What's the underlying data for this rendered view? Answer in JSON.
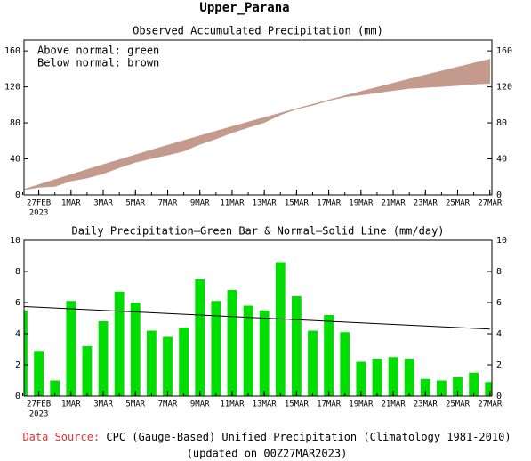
{
  "title": "Upper_Parana",
  "chart_data": [
    {
      "type": "band",
      "title": "Observed Accumulated Precipitation (mm)",
      "annotations": [
        "Above normal: green",
        "Below normal: brown"
      ],
      "above_color": "#00cc00",
      "below_color": "#c49a8c",
      "x": [
        "2023-02-26",
        "2023-02-27",
        "2023-02-28",
        "2023-03-01",
        "2023-03-02",
        "2023-03-03",
        "2023-03-04",
        "2023-03-05",
        "2023-03-06",
        "2023-03-07",
        "2023-03-08",
        "2023-03-09",
        "2023-03-10",
        "2023-03-11",
        "2023-03-12",
        "2023-03-13",
        "2023-03-14",
        "2023-03-15",
        "2023-03-16",
        "2023-03-17",
        "2023-03-18",
        "2023-03-19",
        "2023-03-20",
        "2023-03-21",
        "2023-03-22",
        "2023-03-23",
        "2023-03-24",
        "2023-03-25",
        "2023-03-26",
        "2023-03-27"
      ],
      "series": [
        {
          "name": "Observed",
          "values": [
            5.5,
            8.4,
            9.4,
            15.5,
            18.7,
            23.5,
            30.2,
            36.2,
            40.4,
            44.2,
            48.6,
            56.1,
            62.2,
            69.0,
            74.8,
            80.3,
            88.9,
            95.3,
            99.5,
            104.7,
            108.8,
            111.0,
            113.4,
            115.9,
            118.2,
            119.3,
            120.3,
            121.5,
            123.0,
            123.8
          ]
        },
        {
          "name": "Normal",
          "values": [
            5.8,
            11.5,
            17.1,
            22.7,
            28.3,
            33.8,
            39.2,
            44.6,
            50.0,
            55.3,
            60.5,
            65.7,
            70.9,
            76.0,
            81.0,
            86.0,
            91.0,
            95.9,
            100.7,
            105.5,
            110.3,
            115.0,
            119.6,
            124.2,
            128.8,
            133.3,
            137.7,
            142.1,
            146.5,
            150.8
          ]
        }
      ],
      "xlim": [
        "2023-02-26T02:00",
        "2023-03-27T03:00"
      ],
      "xticks": [
        {
          "value": "2023-02-27",
          "label": "27FEB"
        },
        {
          "value": "2023-03-01",
          "label": "1MAR"
        },
        {
          "value": "2023-03-03",
          "label": "3MAR"
        },
        {
          "value": "2023-03-05",
          "label": "5MAR"
        },
        {
          "value": "2023-03-07",
          "label": "7MAR"
        },
        {
          "value": "2023-03-09",
          "label": "9MAR"
        },
        {
          "value": "2023-03-11",
          "label": "11MAR"
        },
        {
          "value": "2023-03-13",
          "label": "13MAR"
        },
        {
          "value": "2023-03-15",
          "label": "15MAR"
        },
        {
          "value": "2023-03-17",
          "label": "17MAR"
        },
        {
          "value": "2023-03-19",
          "label": "19MAR"
        },
        {
          "value": "2023-03-21",
          "label": "21MAR"
        },
        {
          "value": "2023-03-23",
          "label": "23MAR"
        },
        {
          "value": "2023-03-25",
          "label": "25MAR"
        },
        {
          "value": "2023-03-27",
          "label": "27MAR"
        }
      ],
      "x_year": "2023",
      "ylim": [
        0,
        172
      ],
      "yticks": [
        0,
        40,
        80,
        120,
        160
      ]
    },
    {
      "type": "bar",
      "title": "Daily Precipitation—Green Bar & Normal—Solid Line (mm/day)",
      "x": [
        "2023-02-26",
        "2023-02-27",
        "2023-02-28",
        "2023-03-01",
        "2023-03-02",
        "2023-03-03",
        "2023-03-04",
        "2023-03-05",
        "2023-03-06",
        "2023-03-07",
        "2023-03-08",
        "2023-03-09",
        "2023-03-10",
        "2023-03-11",
        "2023-03-12",
        "2023-03-13",
        "2023-03-14",
        "2023-03-15",
        "2023-03-16",
        "2023-03-17",
        "2023-03-18",
        "2023-03-19",
        "2023-03-20",
        "2023-03-21",
        "2023-03-22",
        "2023-03-23",
        "2023-03-24",
        "2023-03-25",
        "2023-03-26",
        "2023-03-27"
      ],
      "series": [
        {
          "name": "Daily Precipitation",
          "color": "#00dd00",
          "values": [
            5.5,
            2.9,
            1.0,
            6.1,
            3.2,
            4.8,
            6.7,
            6.0,
            4.2,
            3.8,
            4.4,
            7.5,
            6.1,
            6.8,
            5.8,
            5.5,
            8.6,
            6.4,
            4.2,
            5.2,
            4.1,
            2.2,
            2.4,
            2.5,
            2.4,
            1.1,
            1.0,
            1.2,
            1.5,
            0.9
          ]
        },
        {
          "name": "Normal",
          "color": "#000000",
          "values": [
            5.75,
            5.7,
            5.65,
            5.6,
            5.55,
            5.5,
            5.45,
            5.4,
            5.35,
            5.3,
            5.25,
            5.2,
            5.15,
            5.1,
            5.05,
            5.0,
            4.95,
            4.9,
            4.85,
            4.8,
            4.75,
            4.7,
            4.65,
            4.6,
            4.55,
            4.5,
            4.45,
            4.4,
            4.35,
            4.3
          ]
        }
      ],
      "xlim": [
        "2023-02-26T02:00",
        "2023-03-27T03:00"
      ],
      "xticks": [
        {
          "value": "2023-02-27",
          "label": "27FEB"
        },
        {
          "value": "2023-03-01",
          "label": "1MAR"
        },
        {
          "value": "2023-03-03",
          "label": "3MAR"
        },
        {
          "value": "2023-03-05",
          "label": "5MAR"
        },
        {
          "value": "2023-03-07",
          "label": "7MAR"
        },
        {
          "value": "2023-03-09",
          "label": "9MAR"
        },
        {
          "value": "2023-03-11",
          "label": "11MAR"
        },
        {
          "value": "2023-03-13",
          "label": "13MAR"
        },
        {
          "value": "2023-03-15",
          "label": "15MAR"
        },
        {
          "value": "2023-03-17",
          "label": "17MAR"
        },
        {
          "value": "2023-03-19",
          "label": "19MAR"
        },
        {
          "value": "2023-03-21",
          "label": "21MAR"
        },
        {
          "value": "2023-03-23",
          "label": "23MAR"
        },
        {
          "value": "2023-03-25",
          "label": "25MAR"
        },
        {
          "value": "2023-03-27",
          "label": "27MAR"
        }
      ],
      "x_year": "2023",
      "ylim": [
        0,
        10
      ],
      "yticks": [
        0,
        2,
        4,
        6,
        8,
        10
      ]
    }
  ],
  "footer": {
    "source_label": "Data Source:",
    "source_text": "CPC (Gauge-Based) Unified Precipitation (Climatology 1981-2010)",
    "updated": "(updated on 00Z27MAR2023)"
  }
}
